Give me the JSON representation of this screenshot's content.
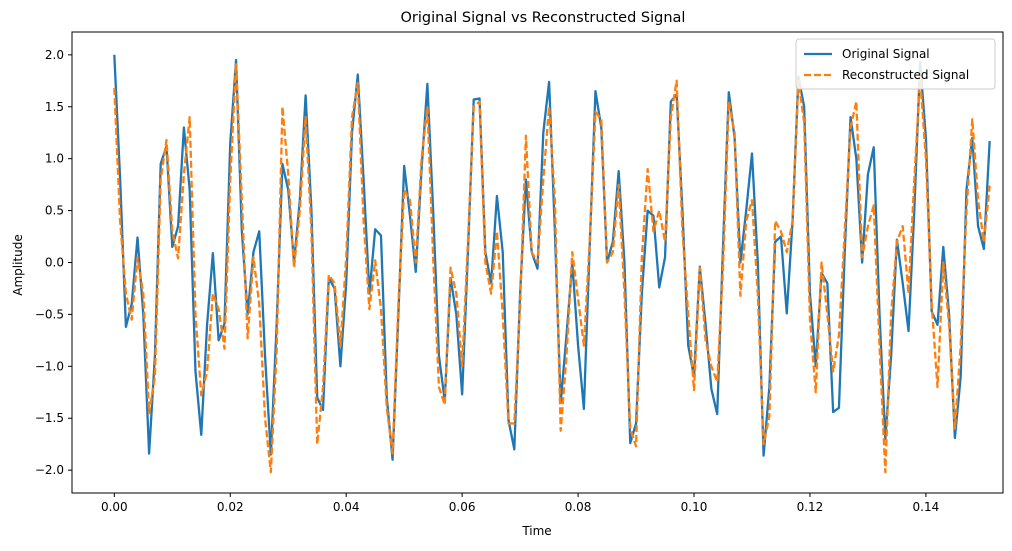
{
  "chart_data": {
    "type": "line",
    "title": "Original Signal vs Reconstructed Signal",
    "xlabel": "Time",
    "ylabel": "Amplitude",
    "xlim": [
      -0.0073,
      0.1533
    ],
    "ylim": [
      -2.22,
      2.22
    ],
    "x_ticks": [
      0.0,
      0.02,
      0.04,
      0.06,
      0.08,
      0.1,
      0.12,
      0.14
    ],
    "x_tick_labels": [
      "0.00",
      "0.02",
      "0.04",
      "0.06",
      "0.08",
      "0.10",
      "0.12",
      "0.14"
    ],
    "y_ticks": [
      -2.0,
      -1.5,
      -1.0,
      -0.5,
      0.0,
      0.5,
      1.0,
      1.5,
      2.0
    ],
    "y_tick_labels": [
      "−2.0",
      "−1.5",
      "−1.0",
      "−0.5",
      "0.0",
      "0.5",
      "1.0",
      "1.5",
      "2.0"
    ],
    "grid": false,
    "legend_position": "top-right",
    "x_start": 0.0,
    "x_step": 0.001,
    "series": [
      {
        "name": "Original Signal",
        "color": "#1f77b4",
        "style": "solid",
        "values": [
          2.0,
          0.8,
          -0.62,
          -0.4,
          0.24,
          -0.5,
          -1.84,
          -0.9,
          0.95,
          1.12,
          0.15,
          0.35,
          1.3,
          0.7,
          -1.05,
          -1.66,
          -0.6,
          0.09,
          -0.75,
          -0.59,
          1.15,
          1.95,
          0.3,
          -0.5,
          0.1,
          0.3,
          -0.9,
          -1.85,
          -0.6,
          0.95,
          0.7,
          0.0,
          0.6,
          1.61,
          0.5,
          -1.3,
          -1.42,
          -0.15,
          -0.25,
          -1.0,
          -0.2,
          1.25,
          1.81,
          0.8,
          -0.3,
          0.32,
          0.26,
          -1.3,
          -1.9,
          -0.5,
          0.93,
          0.45,
          -0.09,
          0.9,
          1.72,
          0.5,
          -0.9,
          -1.33,
          -0.15,
          -0.5,
          -1.27,
          0.1,
          1.57,
          1.58,
          0.1,
          -0.2,
          0.64,
          0.1,
          -1.52,
          -1.8,
          -0.3,
          0.8,
          0.1,
          -0.06,
          1.25,
          1.74,
          0.3,
          -1.35,
          -0.7,
          0.0,
          -0.8,
          -1.41,
          0.15,
          1.65,
          1.3,
          0.0,
          0.2,
          0.88,
          0.0,
          -1.74,
          -1.55,
          -0.3,
          0.5,
          0.45,
          -0.24,
          0.05,
          1.55,
          1.62,
          0.5,
          -0.8,
          -1.1,
          -0.04,
          -0.6,
          -1.22,
          -1.46,
          0.15,
          1.64,
          1.2,
          0.0,
          0.5,
          1.05,
          0.0,
          -1.86,
          -1.2,
          0.2,
          0.25,
          -0.49,
          0.4,
          1.79,
          1.5,
          -0.3,
          -1.0,
          -0.1,
          -0.2,
          -1.44,
          -1.4,
          0.1,
          1.4,
          1.0,
          0.0,
          0.85,
          1.11,
          -0.5,
          -1.7,
          -0.9,
          0.22,
          -0.2,
          -0.66,
          0.5,
          1.93,
          1.2,
          -0.47,
          -0.6,
          0.15,
          -0.5,
          -1.69,
          -1.1,
          0.7,
          1.2,
          0.35,
          0.13,
          1.17
        ]
      },
      {
        "name": "Reconstructed Signal",
        "color": "#ff7f0e",
        "style": "dashed",
        "values": [
          1.68,
          0.4,
          -0.3,
          -0.55,
          0.05,
          -0.3,
          -1.45,
          -1.1,
          0.8,
          1.18,
          0.3,
          0.04,
          0.85,
          1.4,
          -0.5,
          -1.28,
          -1.05,
          -0.3,
          -0.45,
          -0.83,
          0.8,
          1.92,
          0.6,
          -0.73,
          0.05,
          -0.4,
          -1.5,
          -2.02,
          -0.85,
          1.5,
          0.85,
          -0.05,
          0.5,
          1.4,
          0.3,
          -1.75,
          -1.2,
          -0.12,
          -0.2,
          -0.81,
          0.05,
          1.4,
          1.73,
          0.4,
          -0.45,
          0.02,
          -0.45,
          -1.4,
          -1.84,
          -0.4,
          0.7,
          0.6,
          0.0,
          1.0,
          1.5,
          0.05,
          -1.2,
          -1.37,
          -0.05,
          -0.3,
          -1.0,
          0.2,
          1.5,
          1.55,
          0.0,
          -0.3,
          0.3,
          -0.5,
          -1.55,
          -1.55,
          -0.4,
          1.22,
          0.1,
          0.0,
          0.8,
          1.5,
          0.6,
          -1.62,
          -0.9,
          0.1,
          -0.35,
          -0.8,
          0.2,
          1.45,
          1.38,
          0.0,
          0.1,
          0.75,
          -0.3,
          -1.6,
          -1.77,
          0.05,
          0.9,
          0.3,
          0.5,
          0.2,
          1.4,
          1.75,
          0.3,
          -0.5,
          -1.23,
          -0.05,
          -0.75,
          -1.0,
          -1.15,
          -0.05,
          1.55,
          1.25,
          -0.32,
          0.4,
          0.6,
          -0.3,
          -1.75,
          -1.48,
          0.4,
          0.3,
          0.1,
          0.4,
          1.75,
          1.35,
          -0.55,
          -1.25,
          0.0,
          -0.5,
          -1.05,
          -0.7,
          0.3,
          1.3,
          1.55,
          0.05,
          0.35,
          0.55,
          -0.8,
          -2.02,
          -0.5,
          0.2,
          0.35,
          -0.3,
          0.8,
          1.78,
          1.0,
          -0.4,
          -1.2,
          0.0,
          -0.6,
          -1.6,
          -0.8,
          0.5,
          1.38,
          0.6,
          0.2,
          0.74
        ]
      }
    ]
  }
}
